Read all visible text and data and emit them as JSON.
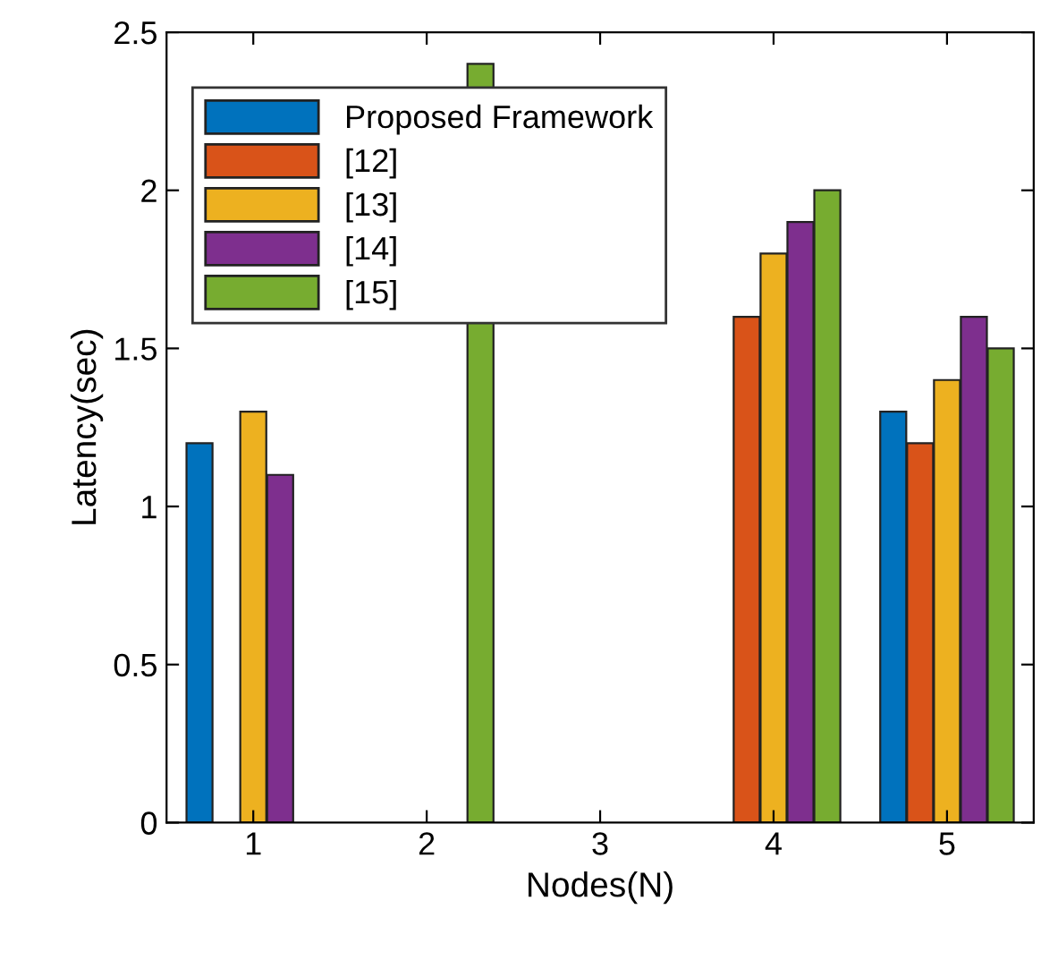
{
  "chart_data": {
    "type": "bar",
    "xlabel": "Nodes(N)",
    "ylabel": "Latency(sec)",
    "categories": [
      "1",
      "2",
      "3",
      "4",
      "5"
    ],
    "series": [
      {
        "name": "Proposed Framework",
        "color": "#0072bd",
        "values": [
          1.2,
          null,
          null,
          null,
          1.3
        ]
      },
      {
        "name": "[12]",
        "color": "#d95319",
        "values": [
          null,
          null,
          null,
          1.6,
          1.2
        ]
      },
      {
        "name": "[13]",
        "color": "#edb120",
        "values": [
          1.3,
          null,
          null,
          1.8,
          1.4
        ]
      },
      {
        "name": "[14]",
        "color": "#7e2f8e",
        "values": [
          1.1,
          null,
          null,
          1.9,
          1.6
        ]
      },
      {
        "name": "[15]",
        "color": "#77ac30",
        "values": [
          null,
          2.4,
          null,
          2.0,
          1.5
        ]
      }
    ],
    "ylim": [
      0,
      2.5
    ],
    "yticks": [
      0,
      0.5,
      1,
      1.5,
      2,
      2.5
    ],
    "legend": "top left",
    "grid": false
  }
}
